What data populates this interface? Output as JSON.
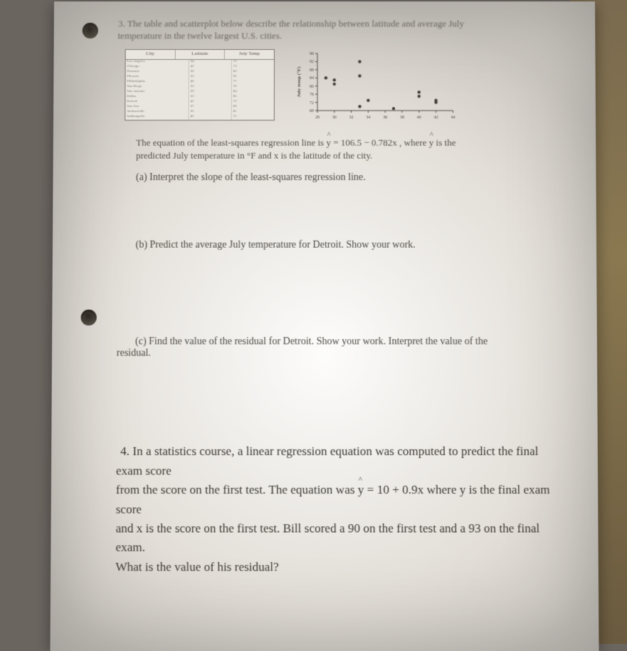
{
  "q3": {
    "intro1": "3. The table and scatterplot below describe the relationship between latitude and average July",
    "intro2": "temperature in the twelve largest U.S. cities.",
    "table": {
      "headers": [
        "City",
        "Latitude",
        "July Temp"
      ],
      "rows": [
        [
          "Los Angeles",
          "34",
          "73"
        ],
        [
          "Chicago",
          "42",
          "73"
        ],
        [
          "Houston",
          "30",
          "83"
        ],
        [
          "Phoenix",
          "33",
          "92"
        ],
        [
          "Philadelphia",
          "40",
          "77"
        ],
        [
          "San Diego",
          "33",
          "70"
        ],
        [
          "San Antonio",
          "29",
          "84"
        ],
        [
          "Dallas",
          "33",
          "85"
        ],
        [
          "Detroit",
          "42",
          "72"
        ],
        [
          "San Jose",
          "37",
          "69"
        ],
        [
          "Jacksonville",
          "30",
          "81"
        ],
        [
          "Indianapolis",
          "40",
          "75"
        ]
      ]
    },
    "chart": {
      "type": "scatter",
      "xlabel": "Latitude",
      "ylabel": "July temp (°F)",
      "xlim": [
        28,
        44
      ],
      "ylim": [
        68,
        96
      ],
      "xticks": [
        28,
        30,
        32,
        34,
        36,
        38,
        40,
        42,
        44
      ],
      "yticks": [
        68,
        72,
        76,
        80,
        84,
        88,
        92,
        96
      ],
      "point_color": "#444038",
      "axis_color": "#555148",
      "background": "#ebe8e1",
      "points": [
        [
          34,
          73
        ],
        [
          42,
          73
        ],
        [
          30,
          83
        ],
        [
          33,
          92
        ],
        [
          40,
          77
        ],
        [
          33,
          70
        ],
        [
          29,
          84
        ],
        [
          33,
          85
        ],
        [
          42,
          72
        ],
        [
          37,
          69
        ],
        [
          30,
          81
        ],
        [
          40,
          75
        ]
      ]
    },
    "eqn1_a": "The equation of the least-squares regression line is ",
    "eqn1_b": " = 106.5 − 0.782x , where ",
    "eqn1_c": " is the",
    "eqn2": "predicted July temperature in °F and x is the latitude of the city.",
    "part_a": "(a) Interpret the slope of the least-squares regression line.",
    "part_b": "(b) Predict the average July temperature for Detroit. Show your work.",
    "part_c1": "(c) Find the value of the residual for Detroit. Show your work. Interpret the value of the",
    "part_c2": "residual."
  },
  "q4": {
    "line1_a": "4. In a statistics course, a linear regression equation was computed to predict the final exam score",
    "line2_a": "from the score on the first test. The equation was ",
    "line2_b": " = 10 + 0.9x where y is the final exam score",
    "line3": "and x is the score on the first test. Bill scored a 90 on the first test and a 93 on the final exam.",
    "line4": "What is the value of his residual?"
  }
}
